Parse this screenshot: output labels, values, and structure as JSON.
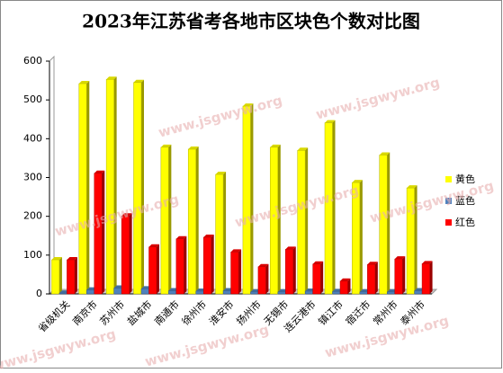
{
  "chart_data": {
    "type": "bar",
    "title": "2023年江苏省考各地市区块色个数对比图",
    "watermark": "www.jsgwyw.org",
    "categories": [
      "省级机关",
      "南京市",
      "苏州市",
      "盐城市",
      "南通市",
      "徐州市",
      "淮安市",
      "扬州市",
      "无锡市",
      "连云港市",
      "镇江市",
      "宿迁市",
      "常州市",
      "泰州市"
    ],
    "series": [
      {
        "name": "黄色",
        "color": "#ffff00",
        "values": [
          88,
          542,
          553,
          545,
          378,
          373,
          308,
          484,
          378,
          370,
          441,
          287,
          358,
          273
        ]
      },
      {
        "name": "蓝色",
        "color": "#4f81bd",
        "values": [
          2,
          10,
          15,
          13,
          8,
          7,
          8,
          5,
          5,
          7,
          6,
          5,
          5,
          8
        ]
      },
      {
        "name": "红色",
        "color": "#ff0000",
        "values": [
          88,
          311,
          201,
          121,
          142,
          146,
          108,
          70,
          115,
          77,
          33,
          76,
          90,
          78
        ]
      }
    ],
    "ylim": [
      0,
      600
    ],
    "yticks": [
      0,
      100,
      200,
      300,
      400,
      500,
      600
    ],
    "grid": false,
    "legend": "right"
  }
}
